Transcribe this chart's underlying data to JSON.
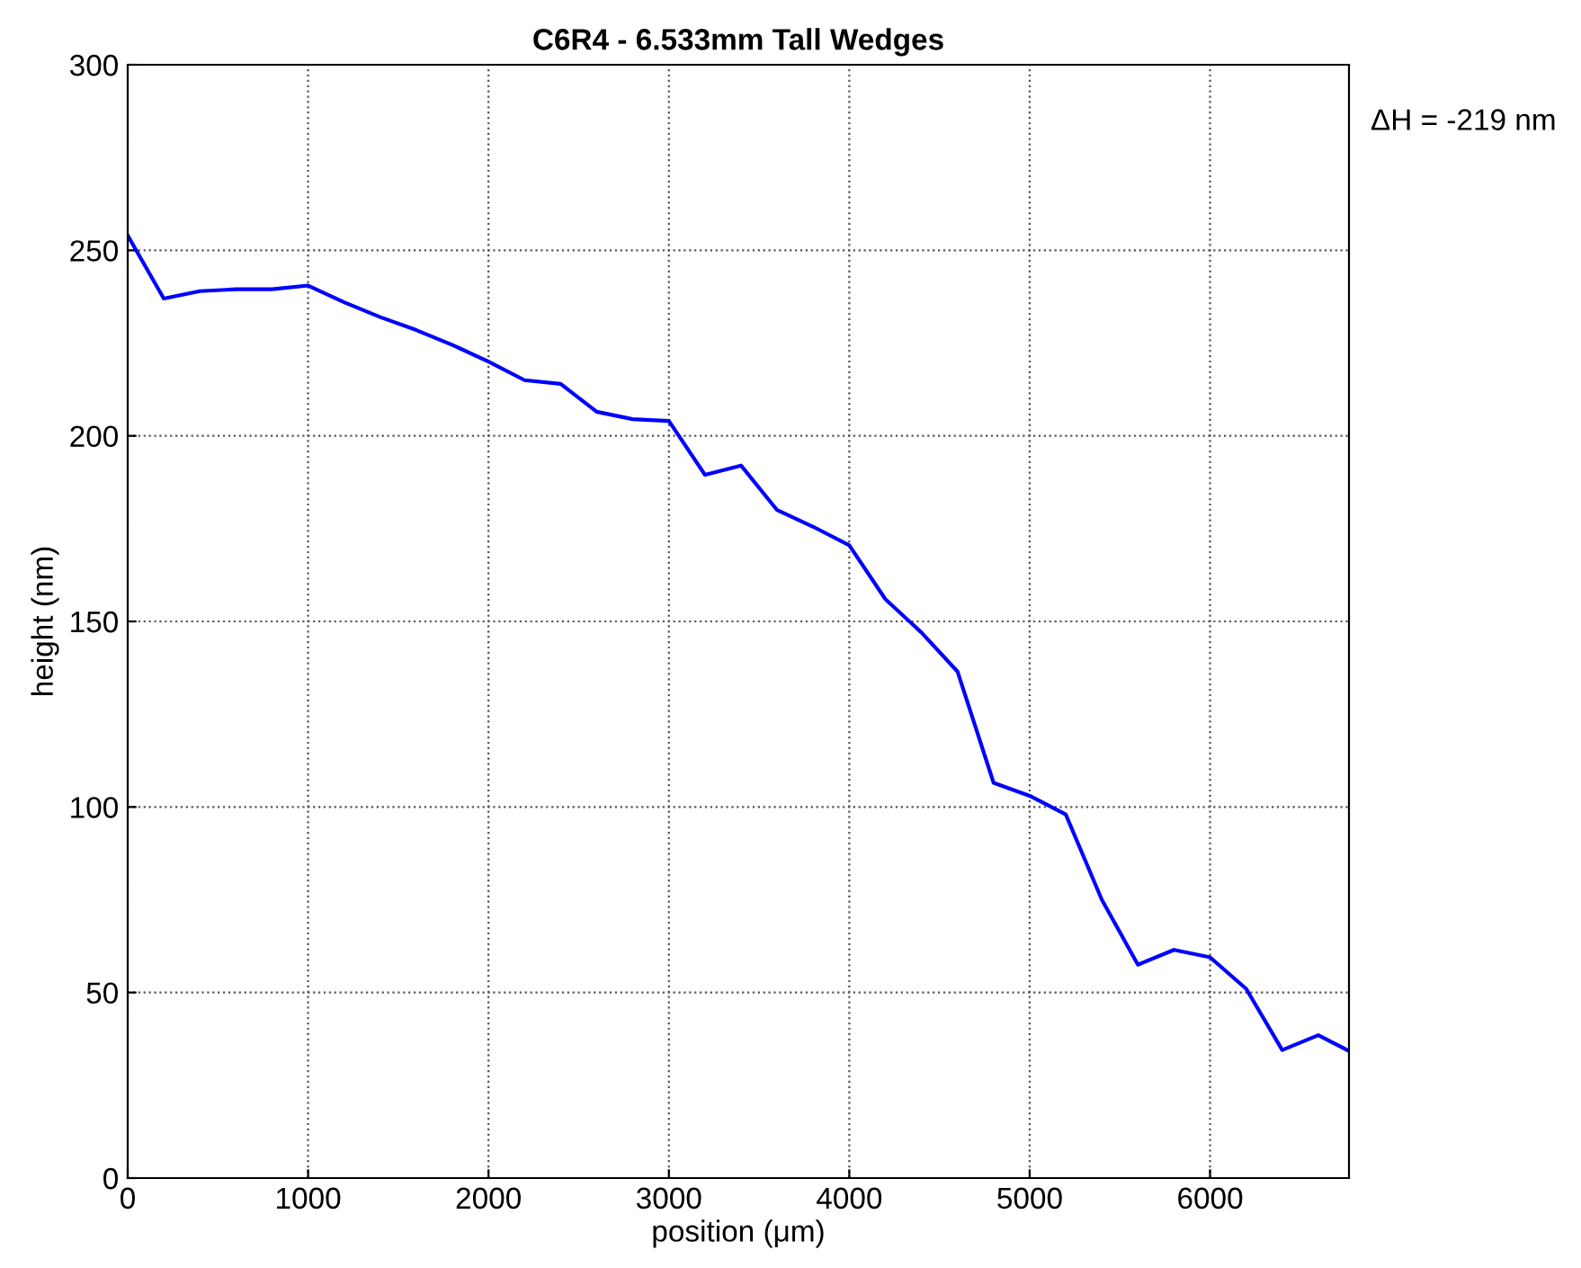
{
  "chart_data": {
    "type": "line",
    "title": "C6R4 - 6.533mm Tall Wedges",
    "xlabel": "position (μm)",
    "ylabel": "height (nm)",
    "annotations": [
      "ΔH = -219 nm"
    ],
    "x": [
      0,
      200,
      400,
      600,
      800,
      1000,
      1200,
      1400,
      1600,
      1800,
      2000,
      2200,
      2400,
      2600,
      2800,
      3000,
      3200,
      3400,
      3600,
      3800,
      4000,
      4200,
      4400,
      4600,
      4800,
      5000,
      5200,
      5400,
      5600,
      5800,
      6000,
      6200,
      6400,
      6600,
      6760
    ],
    "series": [
      {
        "color": "#0000ff",
        "values": [
          254,
          237,
          239,
          239.5,
          239.5,
          240.5,
          236,
          232,
          228.5,
          224.5,
          220,
          215,
          214,
          206.5,
          204.5,
          204,
          189.5,
          192,
          180,
          175.5,
          170.5,
          156,
          147,
          136.5,
          106.5,
          103,
          98,
          75,
          57.5,
          61.5,
          59.5,
          51,
          34.5,
          38.5,
          34.5
        ]
      }
    ],
    "xlim": [
      0,
      6770
    ],
    "xticks": [
      0,
      1000,
      2000,
      3000,
      4000,
      5000,
      6000
    ],
    "ylim": [
      0,
      300
    ],
    "yticks": [
      0,
      50,
      100,
      150,
      200,
      250,
      300
    ],
    "grid": true,
    "marker": "none",
    "line_style": "solid"
  }
}
